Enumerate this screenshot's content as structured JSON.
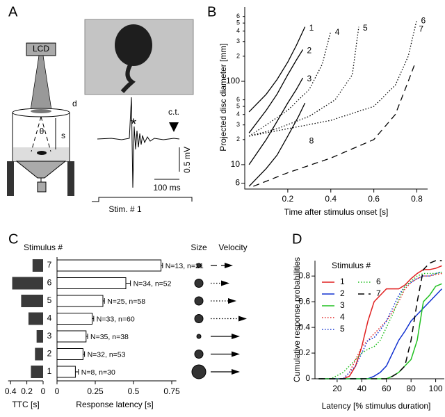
{
  "panel_labels": [
    "A",
    "B",
    "C",
    "D"
  ],
  "panel_a": {
    "lcd": "LCD",
    "d": "d",
    "theta": "θ",
    "s": "s",
    "star": "*",
    "ct": "c.t.",
    "scale_mv": "0.5 mV",
    "scale_ms": "100 ms",
    "stim": "Stim. # 1"
  },
  "chart_data": [
    {
      "type": "line",
      "y_label": "Projected disc  diameter [mm]",
      "x_label": "Time after stimulus onset [s]",
      "log_y": true,
      "xlim": [
        0,
        0.85
      ],
      "ylim": [
        5.1,
        780
      ],
      "xticks": [
        0.2,
        0.4,
        0.6,
        0.8
      ],
      "yticks": [
        6,
        10,
        {
          "value": 20,
          "label": "2"
        },
        {
          "value": 30,
          "label": "3"
        },
        {
          "value": 40,
          "label": "4"
        },
        {
          "value": 50,
          "label": "5"
        },
        {
          "value": 60,
          "label": "6"
        },
        100,
        {
          "value": 200,
          "label": "2"
        },
        {
          "value": 300,
          "label": "3"
        },
        {
          "value": 400,
          "label": "4"
        },
        {
          "value": 500,
          "label": "5"
        },
        {
          "value": 600,
          "label": "6"
        }
      ],
      "series": [
        {
          "name": "1",
          "color": "#000000",
          "style": "solid",
          "x": [
            0.02,
            0.1,
            0.15,
            0.2,
            0.24,
            0.28
          ],
          "values": [
            43,
            70,
            105,
            170,
            270,
            450
          ]
        },
        {
          "name": "2",
          "color": "#000000",
          "style": "solid",
          "x": [
            0.02,
            0.1,
            0.15,
            0.2,
            0.24,
            0.27
          ],
          "values": [
            24,
            45,
            70,
            120,
            180,
            240
          ]
        },
        {
          "name": "3",
          "color": "#000000",
          "style": "solid",
          "x": [
            0.02,
            0.1,
            0.15,
            0.2,
            0.24,
            0.27
          ],
          "values": [
            10,
            20,
            33,
            55,
            80,
            110
          ]
        },
        {
          "name": "4",
          "color": "#000000",
          "style": "dotted",
          "x": [
            0.02,
            0.1,
            0.2,
            0.3,
            0.36,
            0.4
          ],
          "values": [
            22,
            30,
            45,
            80,
            160,
            400
          ]
        },
        {
          "name": "5",
          "color": "#000000",
          "style": "dotted",
          "x": [
            0.02,
            0.15,
            0.3,
            0.42,
            0.5,
            0.53
          ],
          "values": [
            22,
            27,
            38,
            60,
            120,
            450
          ]
        },
        {
          "name": "6",
          "color": "#000000",
          "style": "dotted",
          "x": [
            0.02,
            0.2,
            0.4,
            0.6,
            0.7,
            0.76,
            0.8
          ],
          "values": [
            22,
            27,
            34,
            50,
            90,
            200,
            550
          ]
        },
        {
          "name": "7",
          "color": "#000000",
          "style": "dashed",
          "x": [
            0.04,
            0.2,
            0.4,
            0.6,
            0.7,
            0.76,
            0.79
          ],
          "values": [
            5.5,
            8,
            12,
            20,
            40,
            100,
            160
          ]
        },
        {
          "name": "8",
          "color": "#000000",
          "style": "solid",
          "x": [
            0.02,
            0.1,
            0.15,
            0.2,
            0.25,
            0.28
          ],
          "values": [
            5.5,
            9,
            13,
            22,
            38,
            55
          ]
        }
      ]
    },
    {
      "type": "hbar_left",
      "legend_title": "Stimulus #",
      "x_label": "TTC [s]",
      "color": "#3a3a3a",
      "categories": [
        "7",
        "6",
        "5",
        "4",
        "3",
        "2",
        "1"
      ],
      "values": [
        0.13,
        0.38,
        0.27,
        0.18,
        0.08,
        0.1,
        0.15
      ],
      "xlim": [
        0.43,
        0
      ],
      "xticks": [
        0.4,
        0.2,
        0
      ]
    },
    {
      "type": "hbar_right",
      "x_label": "Response latency [s]",
      "color": "#ffffff",
      "extra_columns": [
        "Size",
        "Velocity"
      ],
      "values": [
        0.68,
        0.45,
        0.3,
        0.23,
        0.19,
        0.17,
        0.12
      ],
      "errors": [
        0.01,
        0.03,
        0.01,
        0.01,
        0.01,
        0.01,
        0.02
      ],
      "labels": [
        "N=13, n=21",
        "N=34, n=52",
        "N=25, n=58",
        "N=33, n=60",
        "N=35, n=38",
        "N=32, n=53",
        "N=8, n=30"
      ],
      "xlim": [
        0,
        0.78
      ],
      "xticks": [
        0,
        0.25,
        0.5,
        0.75
      ]
    },
    {
      "type": "line",
      "legend_title": "Stimulus #",
      "y_label": "Cumulative response probabilities",
      "x_label": "Latency [% stimulus duration]",
      "xlim": [
        2,
        107
      ],
      "ylim": [
        0,
        0.92
      ],
      "xticks": [
        20,
        40,
        60,
        80,
        100
      ],
      "yticks": [
        0,
        0.2,
        0.4,
        0.6,
        0.8
      ],
      "x": [
        5,
        15,
        25,
        30,
        35,
        40,
        45,
        50,
        55,
        60,
        65,
        70,
        75,
        80,
        85,
        90,
        95,
        100,
        105
      ],
      "series": [
        {
          "name": "1",
          "color": "#e02020",
          "style": "solid",
          "values": [
            0,
            0,
            0,
            0.02,
            0.1,
            0.25,
            0.45,
            0.6,
            0.65,
            0.7,
            0.7,
            0.7,
            0.73,
            0.78,
            0.82,
            0.85,
            0.85,
            0.86,
            0.88
          ]
        },
        {
          "name": "2",
          "color": "#1030d0",
          "style": "solid",
          "values": [
            0,
            0,
            0,
            0,
            0,
            0,
            0,
            0.02,
            0.05,
            0.1,
            0.2,
            0.3,
            0.37,
            0.45,
            0.5,
            0.55,
            0.6,
            0.65,
            0.7
          ]
        },
        {
          "name": "3",
          "color": "#20c020",
          "style": "solid",
          "values": [
            0,
            0,
            0,
            0,
            0,
            0,
            0,
            0,
            0,
            0,
            0.02,
            0.05,
            0.1,
            0.15,
            0.3,
            0.6,
            0.65,
            0.72,
            0.74
          ]
        },
        {
          "name": "4",
          "color": "#e02020",
          "style": "dotted",
          "values": [
            0,
            0,
            0,
            0.05,
            0.15,
            0.25,
            0.3,
            0.35,
            0.4,
            0.45,
            0.52,
            0.6,
            0.7,
            0.75,
            0.78,
            0.8,
            0.8,
            0.81,
            0.82
          ]
        },
        {
          "name": "5",
          "color": "#1030d0",
          "style": "dotted",
          "values": [
            0,
            0,
            0,
            0.05,
            0.1,
            0.2,
            0.3,
            0.32,
            0.38,
            0.45,
            0.55,
            0.65,
            0.72,
            0.75,
            0.78,
            0.8,
            0.8,
            0.82,
            0.83
          ]
        },
        {
          "name": "6",
          "color": "#20c020",
          "style": "dotted",
          "values": [
            0,
            0,
            0.05,
            0.1,
            0.15,
            0.2,
            0.23,
            0.25,
            0.3,
            0.4,
            0.5,
            0.62,
            0.72,
            0.76,
            0.8,
            0.82,
            0.82,
            0.82,
            0.83
          ]
        },
        {
          "name": "7",
          "color": "#000000",
          "style": "dashed",
          "values": [
            0,
            0,
            0,
            0,
            0,
            0,
            0,
            0,
            0,
            0,
            0.02,
            0.05,
            0.1,
            0.3,
            0.6,
            0.85,
            0.9,
            0.92,
            0.92
          ]
        }
      ]
    }
  ]
}
